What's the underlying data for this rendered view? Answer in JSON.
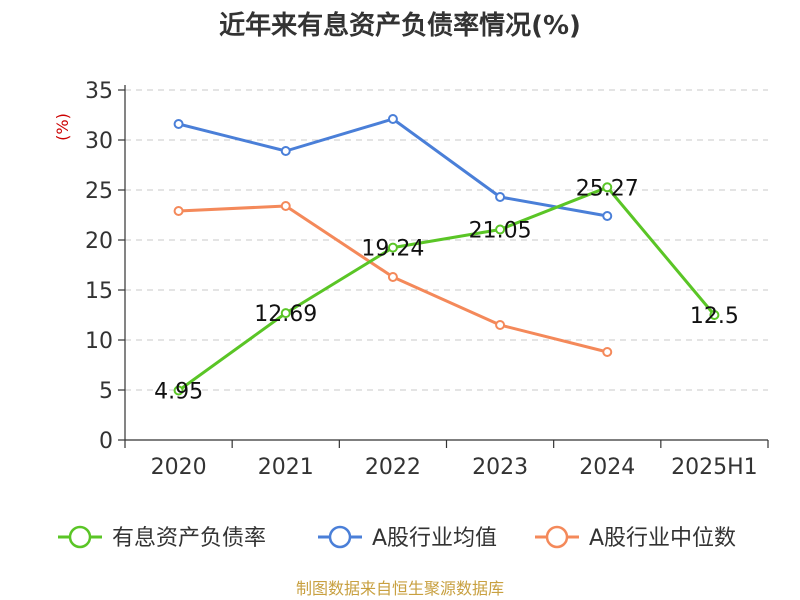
{
  "chart_data": {
    "type": "line",
    "title": "近年来有息资产负债率情况(%)",
    "ylabel": "(%)",
    "categories": [
      "2020",
      "2021",
      "2022",
      "2023",
      "2024",
      "2025H1"
    ],
    "y_ticks": [
      "0",
      "5",
      "10",
      "15",
      "20",
      "25",
      "30",
      "35"
    ],
    "ylim": [
      0,
      35
    ],
    "grid": true,
    "legend_position": "bottom",
    "series": [
      {
        "name": "有息资产负债率",
        "color": "#5ac526",
        "values": [
          4.95,
          12.69,
          19.24,
          21.05,
          25.27,
          12.5
        ],
        "labels": [
          "4.95",
          "12.69",
          "19.24",
          "21.05",
          "25.27",
          "12.5"
        ]
      },
      {
        "name": "A股行业均值",
        "color": "#4a7fd8",
        "values": [
          31.6,
          28.9,
          32.1,
          24.3,
          22.4,
          null
        ]
      },
      {
        "name": "A股行业中位数",
        "color": "#f4895a",
        "values": [
          22.9,
          23.4,
          16.3,
          11.5,
          8.8,
          null
        ]
      }
    ],
    "source": "制图数据来自恒生聚源数据库"
  }
}
